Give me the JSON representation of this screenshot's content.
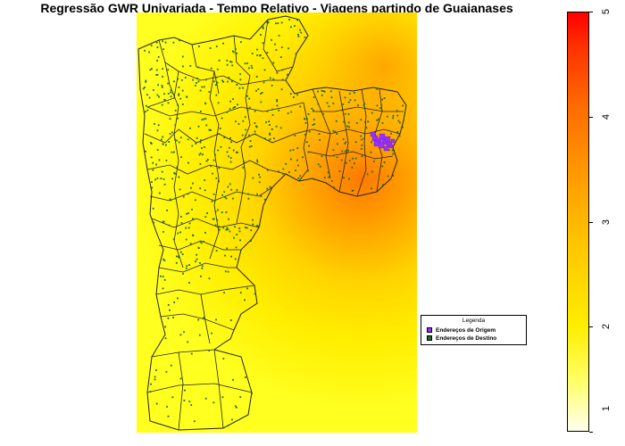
{
  "title": "Regressão GWR Univariada - Tempo Relativo - Viagens partindo de Guaianases",
  "legend": {
    "title": "Legenda",
    "items": [
      {
        "label": "Endereços de Origem",
        "color": "#9b30ff"
      },
      {
        "label": "Endereços de Destino",
        "color": "#1e6b2a"
      }
    ]
  },
  "colorbar": {
    "min": 1,
    "max": 5,
    "ticks": [
      "1",
      "2",
      "3",
      "4",
      "5"
    ],
    "colors": [
      "#ffffee",
      "#ffff00",
      "#ffc000",
      "#ff7000",
      "#ff0000"
    ]
  },
  "map": {
    "background_color": "#ffff00",
    "hotspot_color": "#ff7a00",
    "origin_color": "#9b30ff",
    "destination_color": "#1e6b2a"
  }
}
